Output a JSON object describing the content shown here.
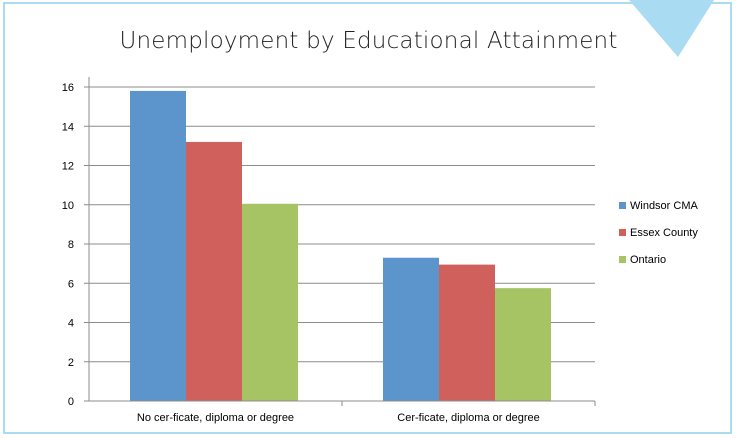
{
  "chart_data": {
    "type": "bar",
    "title": "Unemployment by Educational Attainment",
    "categories": [
      "No cer-ficate, diploma or degree",
      "Cer-ficate, diploma or degree"
    ],
    "series": [
      {
        "name": "Windsor CMA",
        "values": [
          15.8,
          7.3
        ],
        "color": "#5b95cb"
      },
      {
        "name": "Essex County",
        "values": [
          13.2,
          6.95
        ],
        "color": "#cf605b"
      },
      {
        "name": "Ontario",
        "values": [
          10.05,
          5.75
        ],
        "color": "#a7c465"
      }
    ],
    "ylim": [
      0,
      16
    ],
    "yticks": [
      0,
      2,
      4,
      6,
      8,
      10,
      12,
      14,
      16
    ],
    "grid": true,
    "legend_position": "right",
    "xlabel": "",
    "ylabel": ""
  },
  "colors": {
    "frame_border": "#a9dcf2",
    "corner_accent": "#a9dcf2",
    "gridline": "#8c8c8c",
    "axis": "#8c8c8c"
  }
}
